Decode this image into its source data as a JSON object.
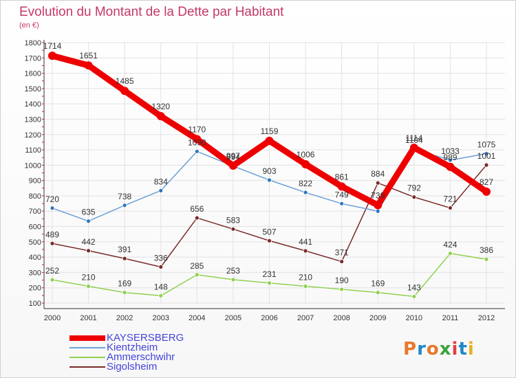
{
  "title": "Evolution du Montant de la Dette par Habitant",
  "subtitle": "(en €)",
  "brand": {
    "text": "Proxiti",
    "letter_colors": [
      "#e8792b",
      "#1e88c8",
      "#e8792b",
      "#3aa33a",
      "#e04040",
      "#1e88c8",
      "#e8b020"
    ]
  },
  "chart_data": {
    "type": "line",
    "x": [
      "2000",
      "2001",
      "2002",
      "2003",
      "2004",
      "2005",
      "2006",
      "2007",
      "2008",
      "2009",
      "2010",
      "2011",
      "2012"
    ],
    "ylim": [
      100,
      1800
    ],
    "yticks": [
      "100",
      "200",
      "300",
      "400",
      "500",
      "600",
      "700",
      "800",
      "900",
      "1000",
      "1100",
      "1200",
      "1300",
      "1400",
      "1500",
      "1600",
      "1700",
      "1800"
    ],
    "grid": true,
    "legend_position": "bottom-left",
    "series": [
      {
        "name": "Ammerschwihr",
        "color": "#8fd14f",
        "marker": "#8fd14f",
        "width": 1.5,
        "values": [
          252,
          210,
          169,
          148,
          285,
          253,
          231,
          210,
          190,
          169,
          143,
          424,
          386
        ],
        "labels": [
          "252",
          "210",
          "169",
          "148",
          "285",
          "253",
          "231",
          "210",
          "190",
          "169",
          "143",
          "424",
          "386"
        ]
      },
      {
        "name": "Sigolsheim",
        "color": "#7a2a2a",
        "marker": "#7a2a2a",
        "width": 1.5,
        "values": [
          489,
          442,
          391,
          336,
          656,
          583,
          507,
          441,
          371,
          884,
          792,
          721,
          1001
        ],
        "labels": [
          "489",
          "442",
          "391",
          "336",
          "656",
          "583",
          "507",
          "441",
          "371",
          "884",
          "792",
          "721",
          "1001"
        ]
      },
      {
        "name": "Kientzheim",
        "color": "#6aa0d8",
        "marker": "#2f74c0",
        "width": 1.5,
        "values": [
          720,
          635,
          738,
          834,
          1090,
          994,
          903,
          822,
          749,
          700,
          1104,
          1033,
          1075
        ],
        "labels": [
          "720",
          "635",
          "738",
          "834",
          "1090",
          "994",
          "903",
          "822",
          "749",
          "",
          "1104",
          "1033",
          "1075"
        ]
      },
      {
        "name": "KAYSERSBERG",
        "color": "#ee0000",
        "marker": "#ee0000",
        "width": 9,
        "values": [
          1714,
          1651,
          1485,
          1320,
          1170,
          997,
          1159,
          1006,
          861,
          739,
          1114,
          989,
          827
        ],
        "labels": [
          "1714",
          "1651",
          "1485",
          "1320",
          "1170",
          "997",
          "1159",
          "1006",
          "861",
          "739",
          "1114",
          "989",
          "827"
        ]
      }
    ],
    "legend_order": [
      "KAYSERSBERG",
      "Kientzheim",
      "Ammerschwihr",
      "Sigolsheim"
    ]
  }
}
